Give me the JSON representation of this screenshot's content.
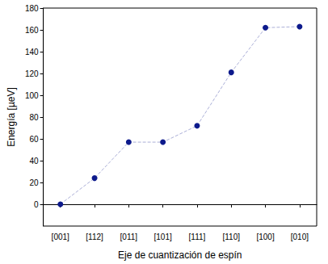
{
  "chart_data": {
    "type": "line",
    "x_label": "Eje de cuantización de espín",
    "y_label": "Energía [µeV]",
    "categories": [
      "[001]",
      "[112]",
      "[011]",
      "[101]",
      "[111]",
      "[110]",
      "[100]",
      "[010]"
    ],
    "values": [
      0,
      24,
      57,
      57,
      72,
      121,
      162,
      163
    ],
    "color": "#0d1a8c",
    "marker": "circle",
    "line_style": "dashed",
    "ylim": [
      -20,
      180
    ],
    "yticks": [
      0,
      20,
      40,
      60,
      80,
      100,
      120,
      140,
      160,
      180
    ],
    "grid": false
  }
}
